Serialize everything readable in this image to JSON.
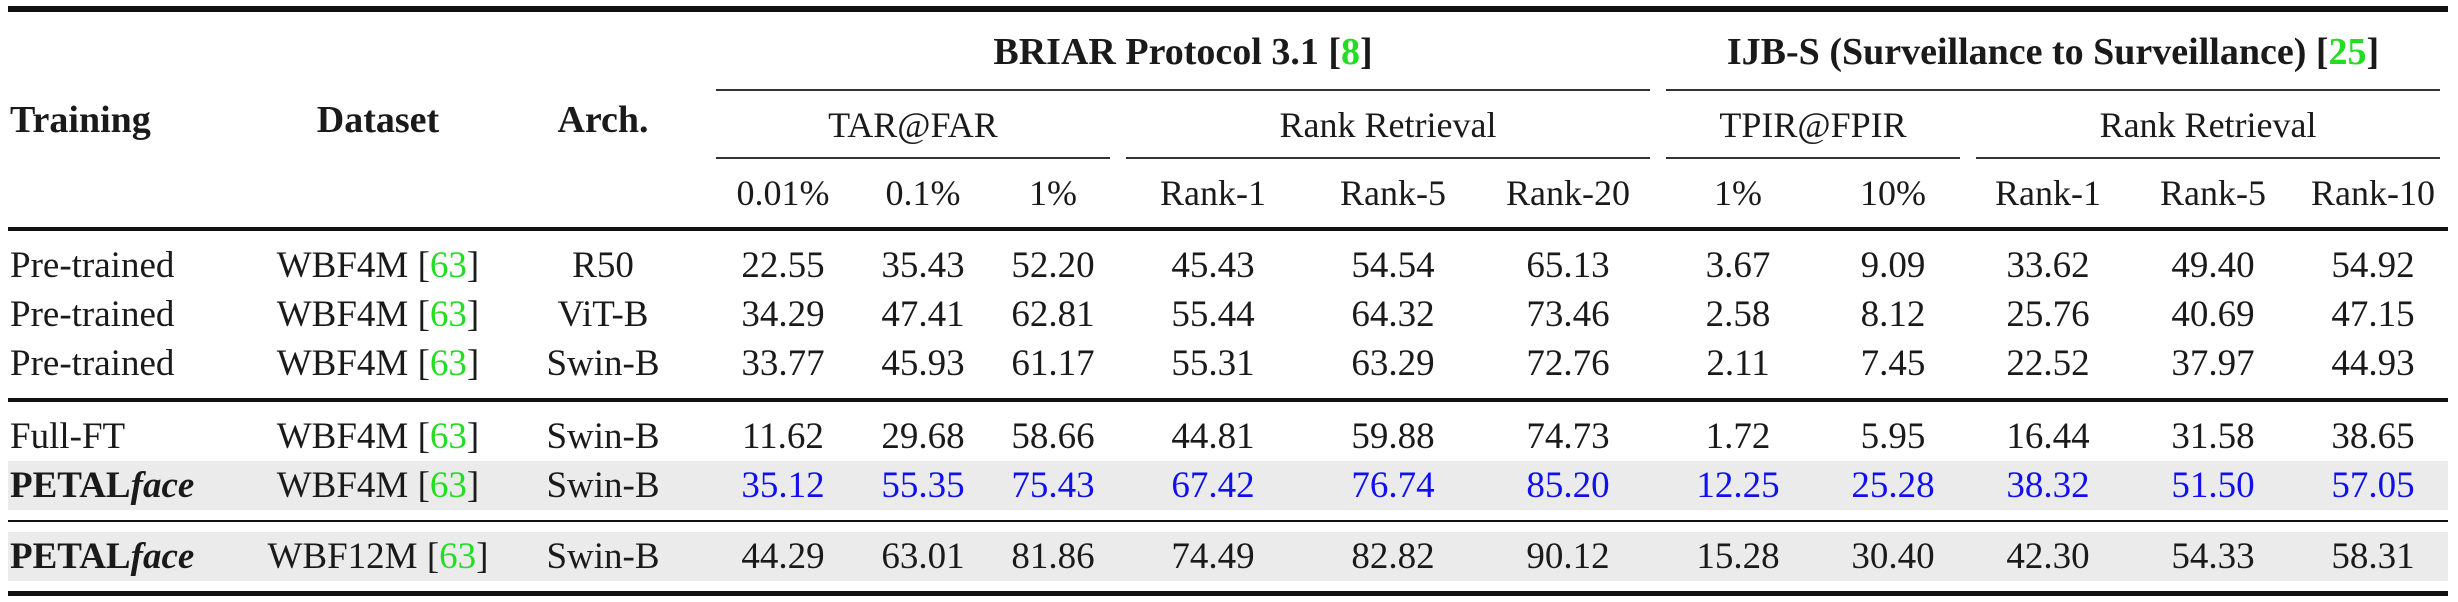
{
  "table": {
    "row_headers": {
      "training": "Training",
      "dataset": "Dataset",
      "arch": "Arch."
    },
    "groups": [
      {
        "label": "BRIAR Protocol 3.1 [",
        "cite": "8",
        "close": "]"
      },
      {
        "label": "IJB-S (Surveillance to Surveillance) [",
        "cite": "25",
        "close": "]"
      }
    ],
    "subgroups": [
      "TAR@FAR",
      "Rank Retrieval",
      "TPIR@FPIR",
      "Rank Retrieval"
    ],
    "metrics": [
      "0.01%",
      "0.1%",
      "1%",
      "Rank-1",
      "Rank-5",
      "Rank-20",
      "1%",
      "10%",
      "Rank-1",
      "Rank-5",
      "Rank-10"
    ],
    "rows": [
      {
        "training": "Pre-trained",
        "training_italic": "",
        "dataset": "WBF4M [",
        "cite": "63",
        "close": "]",
        "arch": "R50",
        "values": [
          "22.55",
          "35.43",
          "52.20",
          "45.43",
          "54.54",
          "65.13",
          "3.67",
          "9.09",
          "33.62",
          "49.40",
          "54.92"
        ]
      },
      {
        "training": "Pre-trained",
        "training_italic": "",
        "dataset": "WBF4M [",
        "cite": "63",
        "close": "]",
        "arch": "ViT-B",
        "values": [
          "34.29",
          "47.41",
          "62.81",
          "55.44",
          "64.32",
          "73.46",
          "2.58",
          "8.12",
          "25.76",
          "40.69",
          "47.15"
        ]
      },
      {
        "training": "Pre-trained",
        "training_italic": "",
        "dataset": "WBF4M [",
        "cite": "63",
        "close": "]",
        "arch": "Swin-B",
        "values": [
          "33.77",
          "45.93",
          "61.17",
          "55.31",
          "63.29",
          "72.76",
          "2.11",
          "7.45",
          "22.52",
          "37.97",
          "44.93"
        ]
      },
      {
        "training": "Full-FT",
        "training_italic": "",
        "dataset": "WBF4M [",
        "cite": "63",
        "close": "]",
        "arch": "Swin-B",
        "values": [
          "11.62",
          "29.68",
          "58.66",
          "44.81",
          "59.88",
          "74.73",
          "1.72",
          "5.95",
          "16.44",
          "31.58",
          "38.65"
        ]
      },
      {
        "training": "PETAL",
        "training_italic": "face",
        "dataset": "WBF4M [",
        "cite": "63",
        "close": "]",
        "arch": "Swin-B",
        "values": [
          "35.12",
          "55.35",
          "75.43",
          "67.42",
          "76.74",
          "85.20",
          "12.25",
          "25.28",
          "38.32",
          "51.50",
          "57.05"
        ]
      },
      {
        "training": "PETAL",
        "training_italic": "face",
        "dataset": "WBF12M [",
        "cite": "63",
        "close": "]",
        "arch": "Swin-B",
        "values": [
          "44.29",
          "63.01",
          "81.86",
          "74.49",
          "82.82",
          "90.12",
          "15.28",
          "30.40",
          "42.30",
          "54.33",
          "58.31"
        ]
      }
    ],
    "colors": {
      "citation": "#22dd22",
      "best": "#1010ee",
      "highlight_row": "#ebebeb"
    }
  }
}
